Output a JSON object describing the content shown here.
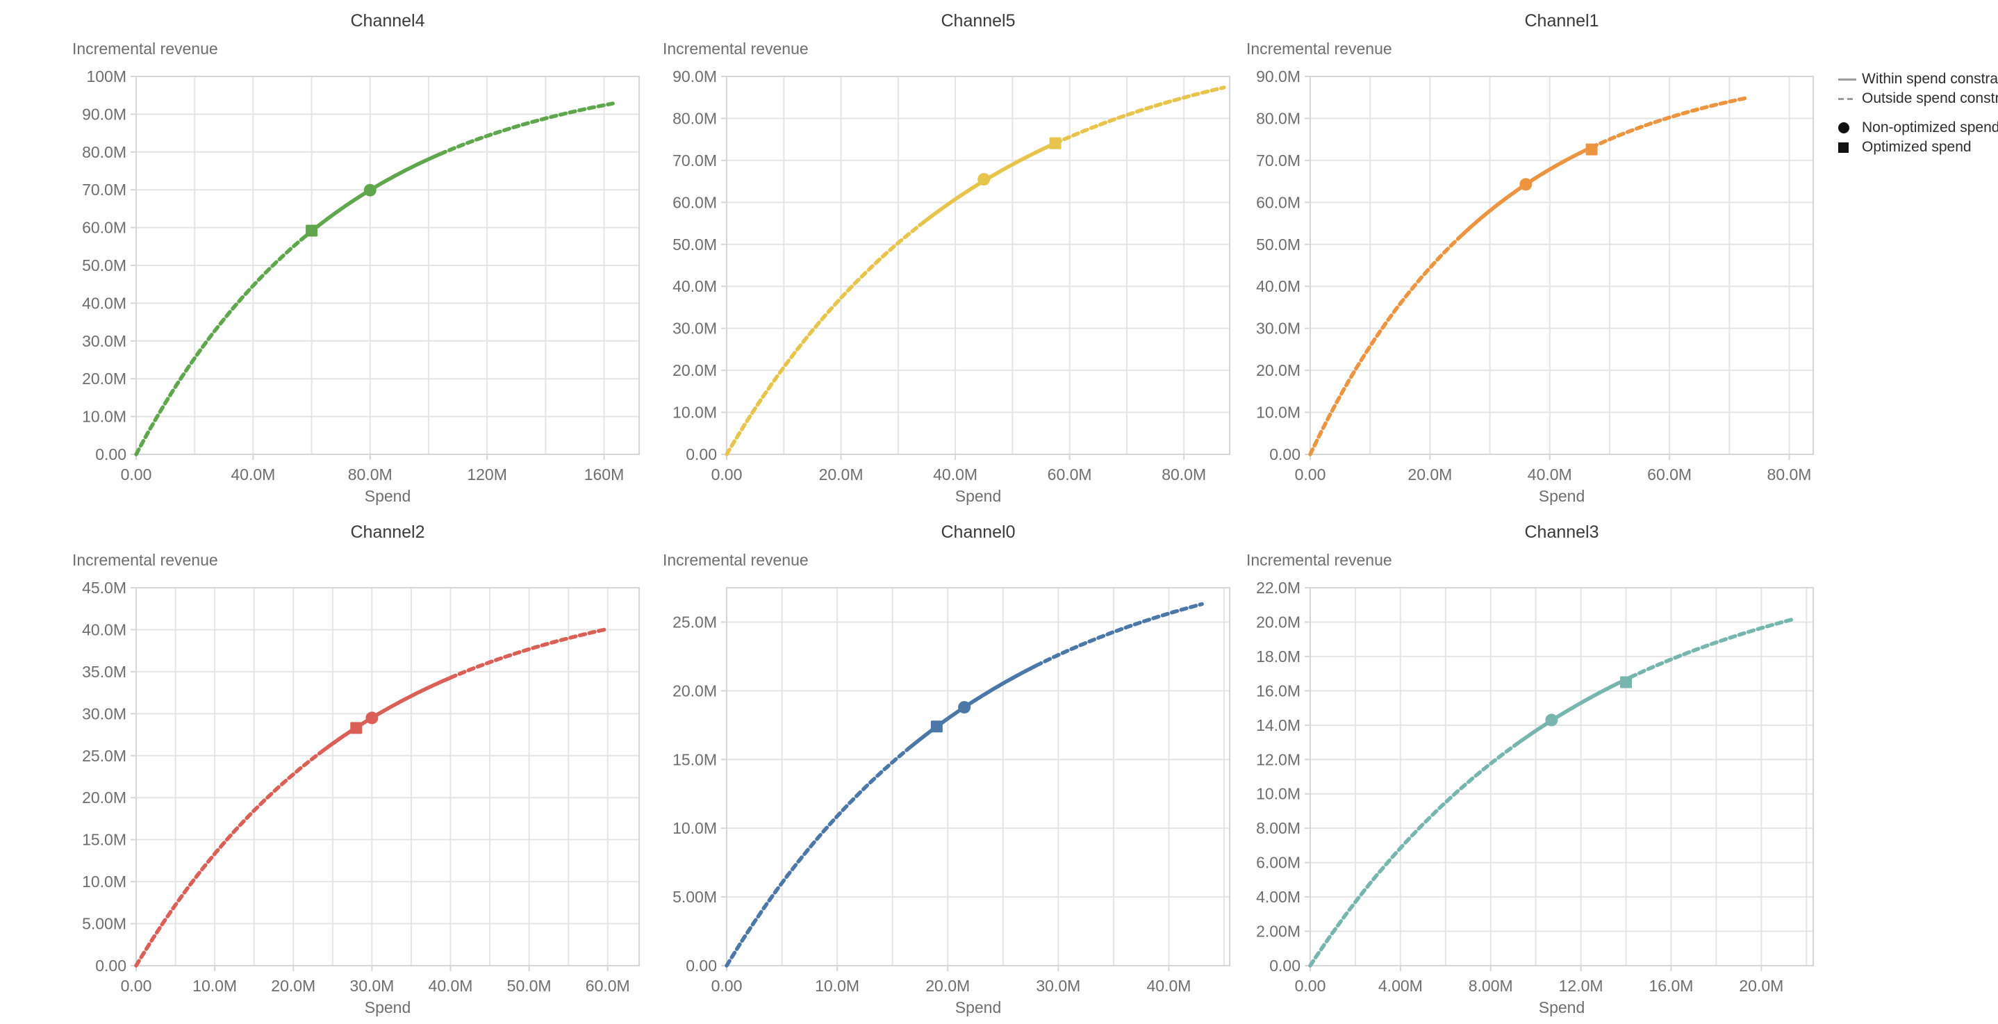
{
  "legend": {
    "items": [
      {
        "icon": "solid-line",
        "label": "Within spend constraint"
      },
      {
        "icon": "dashed-line",
        "label": "Outside spend constraint"
      },
      {
        "icon": "filled-circle",
        "label": "Non-optimized spend"
      },
      {
        "icon": "filled-square",
        "label": "Optimized spend"
      }
    ]
  },
  "chart_data": [
    {
      "type": "line",
      "title": "Channel4",
      "xlabel": "Spend",
      "ylabel": "Incremental revenue",
      "color": "#5fa64d",
      "xlim": [
        0,
        172
      ],
      "ylim": [
        0,
        100
      ],
      "x_grid_step": 20,
      "y_grid_step": 10,
      "x_ticks": {
        "values": [
          0,
          40,
          80,
          120,
          160
        ],
        "labels": [
          "0.00",
          "40.0M",
          "80.0M",
          "120M",
          "160M"
        ]
      },
      "y_ticks": {
        "values": [
          0,
          10,
          20,
          30,
          40,
          50,
          60,
          70,
          80,
          90,
          100
        ],
        "labels": [
          "0.00",
          "10.0M",
          "20.0M",
          "30.0M",
          "40.0M",
          "50.0M",
          "60.0M",
          "70.0M",
          "80.0M",
          "90.0M",
          "100M"
        ]
      },
      "curve": {
        "sat": 103,
        "rate": 0.0142,
        "x_start": 0,
        "x_end": 163
      },
      "within_constraint_range": [
        57,
        104
      ],
      "markers": {
        "non_optimized_spend": {
          "x": 80,
          "y": 69.9
        },
        "optimized_spend": {
          "x": 60,
          "y": 59.2
        }
      }
    },
    {
      "type": "line",
      "title": "Channel5",
      "xlabel": "Spend",
      "ylabel": "Incremental revenue",
      "color": "#e7c54d",
      "xlim": [
        0,
        88
      ],
      "ylim": [
        0,
        90
      ],
      "x_grid_step": 10,
      "y_grid_step": 10,
      "x_ticks": {
        "values": [
          0,
          20,
          40,
          60,
          80
        ],
        "labels": [
          "0.00",
          "20.0M",
          "40.0M",
          "60.0M",
          "80.0M"
        ]
      },
      "y_ticks": {
        "values": [
          0,
          10,
          20,
          30,
          40,
          50,
          60,
          70,
          80,
          90
        ],
        "labels": [
          "0.00",
          "10.0M",
          "20.0M",
          "30.0M",
          "40.0M",
          "50.0M",
          "60.0M",
          "70.0M",
          "80.0M",
          "90.0M"
        ]
      },
      "curve": {
        "sat": 101,
        "rate": 0.023,
        "x_start": 0,
        "x_end": 87
      },
      "within_constraint_range": [
        34.5,
        57.5
      ],
      "markers": {
        "non_optimized_spend": {
          "x": 45,
          "y": 65.5
        },
        "optimized_spend": {
          "x": 57.5,
          "y": 74.1
        }
      }
    },
    {
      "type": "line",
      "title": "Channel1",
      "xlabel": "Spend",
      "ylabel": "Incremental revenue",
      "color": "#ed9440",
      "xlim": [
        0,
        84
      ],
      "ylim": [
        0,
        90
      ],
      "x_grid_step": 10,
      "y_grid_step": 10,
      "x_ticks": {
        "values": [
          0,
          20,
          40,
          60,
          80
        ],
        "labels": [
          "0.00",
          "20.0M",
          "40.0M",
          "60.0M",
          "80.0M"
        ]
      },
      "y_ticks": {
        "values": [
          0,
          10,
          20,
          30,
          40,
          50,
          60,
          70,
          80,
          90
        ],
        "labels": [
          "0.00",
          "10.0M",
          "20.0M",
          "30.0M",
          "40.0M",
          "50.0M",
          "60.0M",
          "70.0M",
          "80.0M",
          "90.0M"
        ]
      },
      "curve": {
        "sat": 94,
        "rate": 0.032,
        "x_start": 0,
        "x_end": 73
      },
      "within_constraint_range": [
        25.5,
        47
      ],
      "markers": {
        "non_optimized_spend": {
          "x": 36,
          "y": 64.3
        },
        "optimized_spend": {
          "x": 47,
          "y": 72.6
        }
      }
    },
    {
      "type": "line",
      "title": "Channel2",
      "xlabel": "Spend",
      "ylabel": "Incremental revenue",
      "color": "#d95f57",
      "xlim": [
        0,
        64
      ],
      "ylim": [
        0,
        45
      ],
      "x_grid_step": 5,
      "y_grid_step": 5,
      "x_ticks": {
        "values": [
          0,
          10,
          20,
          30,
          40,
          50,
          60
        ],
        "labels": [
          "0.00",
          "10.0M",
          "20.0M",
          "30.0M",
          "40.0M",
          "50.0M",
          "60.0M"
        ]
      },
      "y_ticks": {
        "values": [
          0,
          5,
          10,
          15,
          20,
          25,
          30,
          35,
          40,
          45
        ],
        "labels": [
          "0.00",
          "5.00M",
          "10.0M",
          "15.0M",
          "20.0M",
          "25.0M",
          "30.0M",
          "35.0M",
          "40.0M",
          "45.0M"
        ]
      },
      "curve": {
        "sat": 46,
        "rate": 0.0342,
        "x_start": 0,
        "x_end": 60
      },
      "within_constraint_range": [
        24,
        40
      ],
      "markers": {
        "non_optimized_spend": {
          "x": 30,
          "y": 29.5
        },
        "optimized_spend": {
          "x": 28,
          "y": 28.3
        }
      }
    },
    {
      "type": "line",
      "title": "Channel0",
      "xlabel": "Spend",
      "ylabel": "Incremental revenue",
      "color": "#4c78a8",
      "xlim": [
        0,
        45.5
      ],
      "ylim": [
        0,
        27.5
      ],
      "x_grid_step": 5,
      "y_grid_step": 5,
      "x_ticks": {
        "values": [
          0,
          10,
          20,
          30,
          40
        ],
        "labels": [
          "0.00",
          "10.0M",
          "20.0M",
          "30.0M",
          "40.0M"
        ]
      },
      "y_ticks": {
        "values": [
          0,
          5,
          10,
          15,
          20,
          25
        ],
        "labels": [
          "0.00",
          "5.00M",
          "10.0M",
          "15.0M",
          "20.0M",
          "25.0M"
        ]
      },
      "curve": {
        "sat": 31.3,
        "rate": 0.0427,
        "x_start": 0,
        "x_end": 43
      },
      "within_constraint_range": [
        16.5,
        28
      ],
      "markers": {
        "non_optimized_spend": {
          "x": 21.5,
          "y": 18.8
        },
        "optimized_spend": {
          "x": 19,
          "y": 17.4
        }
      }
    },
    {
      "type": "line",
      "title": "Channel3",
      "xlabel": "Spend",
      "ylabel": "Incremental revenue",
      "color": "#77b5af",
      "xlim": [
        0,
        22.3
      ],
      "ylim": [
        0,
        22
      ],
      "x_grid_step": 2,
      "y_grid_step": 2,
      "x_ticks": {
        "values": [
          0,
          4,
          8,
          12,
          16,
          20
        ],
        "labels": [
          "0.00",
          "4.00M",
          "8.00M",
          "12.0M",
          "16.0M",
          "20.0M"
        ]
      },
      "y_ticks": {
        "values": [
          0,
          2,
          4,
          6,
          8,
          10,
          12,
          14,
          16,
          18,
          20,
          22
        ],
        "labels": [
          "0.00",
          "2.00M",
          "4.00M",
          "6.00M",
          "8.00M",
          "10.0M",
          "12.0M",
          "14.0M",
          "16.0M",
          "18.0M",
          "20.0M",
          "22.0M"
        ]
      },
      "curve": {
        "sat": 24.3,
        "rate": 0.0827,
        "x_start": 0,
        "x_end": 21.5
      },
      "within_constraint_range": [
        9.3,
        14.2
      ],
      "markers": {
        "non_optimized_spend": {
          "x": 10.7,
          "y": 14.3
        },
        "optimized_spend": {
          "x": 14,
          "y": 16.5
        }
      }
    }
  ]
}
